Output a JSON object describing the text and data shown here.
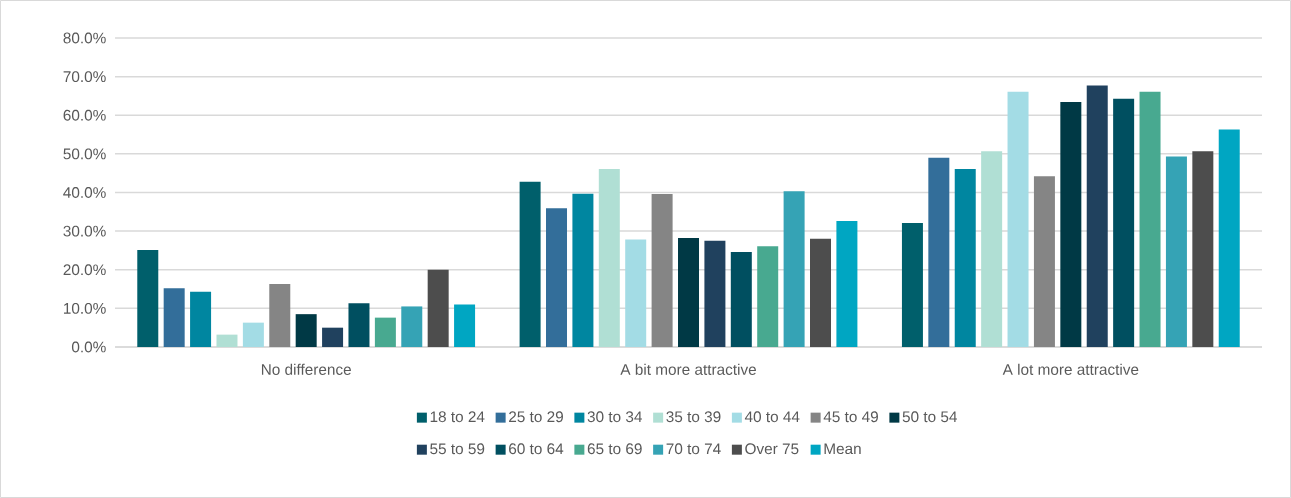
{
  "chart_data": {
    "type": "bar",
    "categories": [
      "No difference",
      "A bit more attractive",
      "A lot more attractive"
    ],
    "series": [
      {
        "name": "18 to 24",
        "color": "#005f6b",
        "values": [
          25.1,
          42.8,
          32.1
        ]
      },
      {
        "name": "25 to 29",
        "color": "#336e9a",
        "values": [
          15.2,
          35.9,
          49.0
        ]
      },
      {
        "name": "30 to 34",
        "color": "#0086a0",
        "values": [
          14.3,
          39.7,
          46.1
        ]
      },
      {
        "name": "35 to 39",
        "color": "#b0dfd4",
        "values": [
          3.2,
          46.1,
          50.7
        ]
      },
      {
        "name": "40 to 44",
        "color": "#a3dce5",
        "values": [
          6.3,
          27.8,
          66.1
        ]
      },
      {
        "name": "45 to 49",
        "color": "#858585",
        "values": [
          16.3,
          39.6,
          44.2
        ]
      },
      {
        "name": "50 to 54",
        "color": "#003945",
        "values": [
          8.5,
          28.2,
          63.4
        ]
      },
      {
        "name": "55 to 59",
        "color": "#20415e",
        "values": [
          5.0,
          27.5,
          67.7
        ]
      },
      {
        "name": "60 to 64",
        "color": "#004f60",
        "values": [
          11.3,
          24.6,
          64.3
        ]
      },
      {
        "name": "65 to 69",
        "color": "#48a990",
        "values": [
          7.6,
          26.1,
          66.1
        ]
      },
      {
        "name": "70 to 74",
        "color": "#35a3b5",
        "values": [
          10.5,
          40.3,
          49.3
        ]
      },
      {
        "name": "Over 75",
        "color": "#4d4d4d",
        "values": [
          20.0,
          28.0,
          50.7
        ]
      },
      {
        "name": "Mean",
        "color": "#00a6c2",
        "values": [
          11.0,
          32.6,
          56.3
        ]
      }
    ],
    "ylim": [
      0,
      80
    ],
    "yticks": [
      {
        "value": 0,
        "label": "0.0%"
      },
      {
        "value": 10,
        "label": "10.0%"
      },
      {
        "value": 20,
        "label": "20.0%"
      },
      {
        "value": 30,
        "label": "30.0%"
      },
      {
        "value": 40,
        "label": "40.0%"
      },
      {
        "value": 50,
        "label": "50.0%"
      },
      {
        "value": 60,
        "label": "60.0%"
      },
      {
        "value": 70,
        "label": "70.0%"
      },
      {
        "value": 80,
        "label": "80.0%"
      }
    ],
    "grid": "y",
    "legend": "bottom"
  }
}
